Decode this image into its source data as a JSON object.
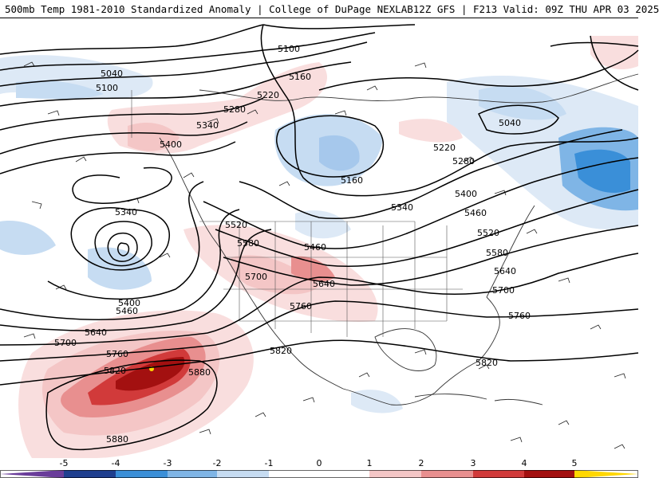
{
  "header": {
    "left_title": "500mb Temp 1981-2010 Standardized Anomaly | College of DuPage NEXLAB",
    "right_title": "12Z GFS | F213 Valid: 09Z THU APR 03 2025"
  },
  "contour_labels": {
    "c5100": "5100",
    "c5040": "5040",
    "c5160": "5160",
    "c5220": "5220",
    "c5280": "5280",
    "c5340": "5340",
    "c5400": "5400",
    "c5460": "5460",
    "c5520": "5520",
    "c5580": "5580",
    "c5640": "5640",
    "c5700": "5700",
    "c5760": "5760",
    "c5820": "5820",
    "c5880": "5880"
  },
  "colorbar": {
    "ticks": [
      "-5",
      "-4",
      "-3",
      "-2",
      "-1",
      "0",
      "1",
      "2",
      "3",
      "4",
      "5"
    ],
    "colors": {
      "neg5": "#6a3d9a",
      "neg4": "#1f3f8f",
      "neg3": "#3a8fd8",
      "neg2": "#7fb5e6",
      "neg1": "#c6dcf2",
      "zero": "#ffffff",
      "pos1": "#f4c6c6",
      "pos2": "#e88f8f",
      "pos3": "#d13a3a",
      "pos4": "#a31010",
      "pos5": "#7a0000",
      "max": "#ffd700"
    }
  }
}
